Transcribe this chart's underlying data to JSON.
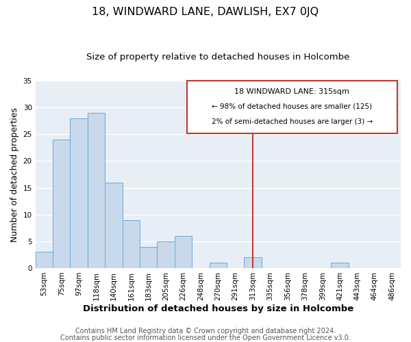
{
  "title": "18, WINDWARD LANE, DAWLISH, EX7 0JQ",
  "subtitle": "Size of property relative to detached houses in Holcombe",
  "xlabel": "Distribution of detached houses by size in Holcombe",
  "ylabel": "Number of detached properties",
  "bar_labels": [
    "53sqm",
    "75sqm",
    "97sqm",
    "118sqm",
    "140sqm",
    "161sqm",
    "183sqm",
    "205sqm",
    "226sqm",
    "248sqm",
    "270sqm",
    "291sqm",
    "313sqm",
    "335sqm",
    "356sqm",
    "378sqm",
    "399sqm",
    "421sqm",
    "443sqm",
    "464sqm",
    "486sqm"
  ],
  "bar_values": [
    3,
    24,
    28,
    29,
    16,
    9,
    4,
    5,
    6,
    0,
    1,
    0,
    2,
    0,
    0,
    0,
    0,
    1,
    0,
    0,
    0
  ],
  "bar_color": "#c8d9ec",
  "bar_edge_color": "#6aaad4",
  "vline_index": 12,
  "vline_color": "#c0392b",
  "annotation_title": "18 WINDWARD LANE: 315sqm",
  "annotation_line1": "← 98% of detached houses are smaller (125)",
  "annotation_line2": "2% of semi-detached houses are larger (3) →",
  "annotation_box_facecolor": "#ffffff",
  "annotation_box_edgecolor": "#c0392b",
  "footer1": "Contains HM Land Registry data © Crown copyright and database right 2024.",
  "footer2": "Contains public sector information licensed under the Open Government Licence v3.0.",
  "bg_color": "#e8eef5",
  "ylim": [
    0,
    35
  ],
  "yticks": [
    0,
    5,
    10,
    15,
    20,
    25,
    30,
    35
  ],
  "title_fontsize": 11.5,
  "subtitle_fontsize": 9.5,
  "xlabel_fontsize": 9.5,
  "ylabel_fontsize": 9,
  "tick_fontsize": 7.5,
  "footer_fontsize": 7
}
